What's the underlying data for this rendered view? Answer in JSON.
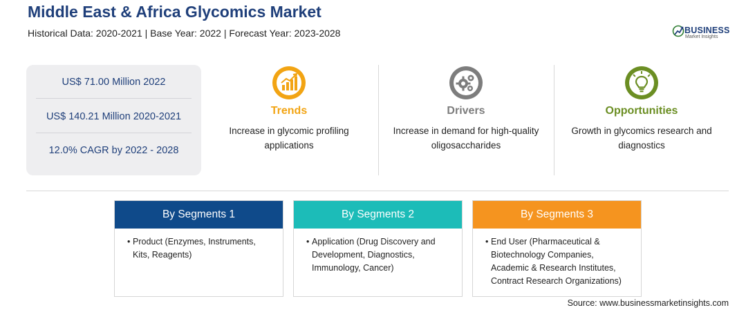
{
  "header": {
    "title": "Middle East & Africa Glycomics Market",
    "subtitle": "Historical Data: 2020-2021 | Base Year: 2022 | Forecast Year: 2023-2028"
  },
  "logo": {
    "name": "BUSINESS",
    "tagline": "Market Insights",
    "icon": "globe-icon"
  },
  "stats": [
    "US$ 71.00 Million 2022",
    "US$ 140.21 Million 2020-2021",
    "12.0% CAGR by 2022 - 2028"
  ],
  "insights": [
    {
      "heading": "Trends",
      "text": "Increase in glycomic profiling applications",
      "color": "#f2a413",
      "icon": "chart-up-icon"
    },
    {
      "heading": "Drivers",
      "text": "Increase in demand for high-quality oligosaccharides",
      "color": "#7d7d7d",
      "icon": "gears-icon"
    },
    {
      "heading": "Opportunities",
      "text": "Growth in glycomics research and diagnostics",
      "color": "#6b8e23",
      "icon": "lightbulb-icon"
    }
  ],
  "segments": [
    {
      "title": "By Segments 1",
      "color": "#0f4a8a",
      "item": "Product (Enzymes, Instruments, Kits, Reagents)"
    },
    {
      "title": "By Segments 2",
      "color": "#1cbcb8",
      "item": "Application (Drug Discovery and Development, Diagnostics, Immunology, Cancer)"
    },
    {
      "title": "By Segments 3",
      "color": "#f5941f",
      "item": "End User (Pharmaceutical & Biotechnology Companies, Academic & Research Institutes, Contract Research Organizations)"
    }
  ],
  "source": "Source: www.businessmarketinsights.com"
}
